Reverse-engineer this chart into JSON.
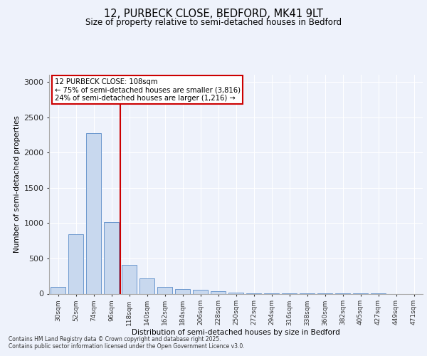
{
  "title1": "12, PURBECK CLOSE, BEDFORD, MK41 9LT",
  "title2": "Size of property relative to semi-detached houses in Bedford",
  "xlabel": "Distribution of semi-detached houses by size in Bedford",
  "ylabel": "Number of semi-detached properties",
  "categories": [
    "30sqm",
    "52sqm",
    "74sqm",
    "96sqm",
    "118sqm",
    "140sqm",
    "162sqm",
    "184sqm",
    "206sqm",
    "228sqm",
    "250sqm",
    "272sqm",
    "294sqm",
    "316sqm",
    "338sqm",
    "360sqm",
    "382sqm",
    "405sqm",
    "427sqm",
    "449sqm",
    "471sqm"
  ],
  "values": [
    100,
    840,
    2270,
    1010,
    410,
    220,
    100,
    70,
    55,
    35,
    20,
    8,
    4,
    3,
    2,
    2,
    1,
    1,
    1,
    0,
    0
  ],
  "bar_color": "#c8d8ee",
  "bar_edge_color": "#5b8cc8",
  "annotation_title": "12 PURBECK CLOSE: 108sqm",
  "annotation_line1": "← 75% of semi-detached houses are smaller (3,816)",
  "annotation_line2": "24% of semi-detached houses are larger (1,216) →",
  "ylim": [
    0,
    3100
  ],
  "yticks": [
    0,
    500,
    1000,
    1500,
    2000,
    2500,
    3000
  ],
  "footer1": "Contains HM Land Registry data © Crown copyright and database right 2025.",
  "footer2": "Contains public sector information licensed under the Open Government Licence v3.0.",
  "bg_color": "#eef2fb",
  "grid_color": "#ffffff",
  "annotation_box_color": "#ffffff",
  "annotation_box_edge": "#cc0000",
  "vline_color": "#cc0000"
}
